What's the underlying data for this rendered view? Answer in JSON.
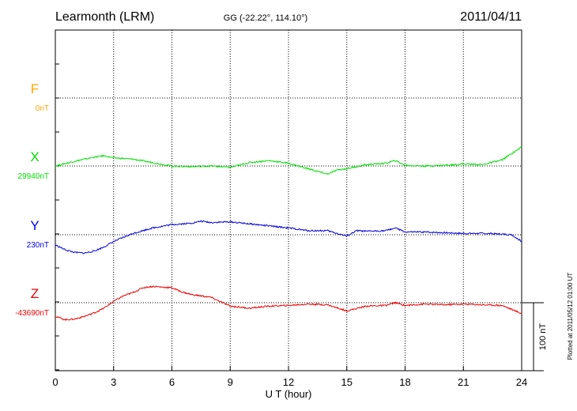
{
  "header": {
    "station": "Learmonth (LRM)",
    "coords": "GG (-22.22°, 114.10°)",
    "date": "2011/04/11"
  },
  "side_note": "Plotted at 2011/05/12 01:00 UT",
  "scale_bar_label": "100 nT",
  "chart_data": {
    "type": "line",
    "xlabel": "U T (hour)",
    "xlim": [
      0,
      24
    ],
    "x_ticks": [
      "0",
      "3",
      "6",
      "9",
      "12",
      "15",
      "18",
      "21",
      "24"
    ],
    "grid": true,
    "series": [
      {
        "name": "F",
        "baseline": "0nT",
        "color": "#ffa500",
        "x": [],
        "y": []
      },
      {
        "name": "X",
        "baseline": "29940nT",
        "color": "#00e000",
        "x": [
          0,
          1,
          2,
          2.5,
          3,
          4,
          5,
          6,
          7,
          8,
          9,
          10,
          11,
          12,
          13,
          13.5,
          14,
          14.5,
          15,
          16,
          17,
          17.5,
          18,
          19,
          20,
          21,
          22,
          23,
          24
        ],
        "y": [
          0,
          7,
          13,
          15,
          12,
          10,
          5,
          0,
          -1,
          0,
          -2,
          5,
          8,
          4,
          -4,
          -8,
          -12,
          -6,
          -4,
          2,
          4,
          8,
          1,
          0,
          1,
          3,
          2,
          9,
          28
        ]
      },
      {
        "name": "Y",
        "baseline": "230nT",
        "color": "#0000dd",
        "x": [
          0,
          0.5,
          1,
          1.5,
          2,
          2.5,
          3,
          4,
          5,
          6,
          7,
          7.5,
          8,
          9,
          10,
          11,
          12,
          13,
          14,
          15,
          15.5,
          16,
          17,
          17.5,
          18,
          19,
          20,
          21,
          22,
          23,
          23.5,
          24
        ],
        "y": [
          -15,
          -22,
          -26,
          -27,
          -24,
          -18,
          -10,
          2,
          10,
          15,
          17,
          20,
          18,
          19,
          16,
          13,
          10,
          6,
          6,
          -2,
          6,
          5,
          6,
          10,
          4,
          4,
          3,
          2,
          2,
          1,
          0,
          -10
        ]
      },
      {
        "name": "Z",
        "baseline": "-43690nT",
        "color": "#ee0000",
        "x": [
          0,
          0.5,
          1,
          1.5,
          2,
          2.5,
          3,
          3.5,
          4,
          4.5,
          5,
          6,
          6.5,
          7,
          8,
          9,
          10,
          11,
          12,
          13,
          14,
          15,
          16,
          17,
          17.5,
          18,
          19,
          20,
          21,
          22,
          23,
          24
        ],
        "y": [
          -20,
          -25,
          -24,
          -20,
          -15,
          -8,
          2,
          10,
          15,
          22,
          24,
          22,
          16,
          12,
          8,
          -5,
          -8,
          -5,
          -4,
          -2,
          -3,
          -12,
          -5,
          -4,
          0,
          -4,
          -2,
          -3,
          -2,
          -3,
          -4,
          -16
        ]
      }
    ]
  }
}
